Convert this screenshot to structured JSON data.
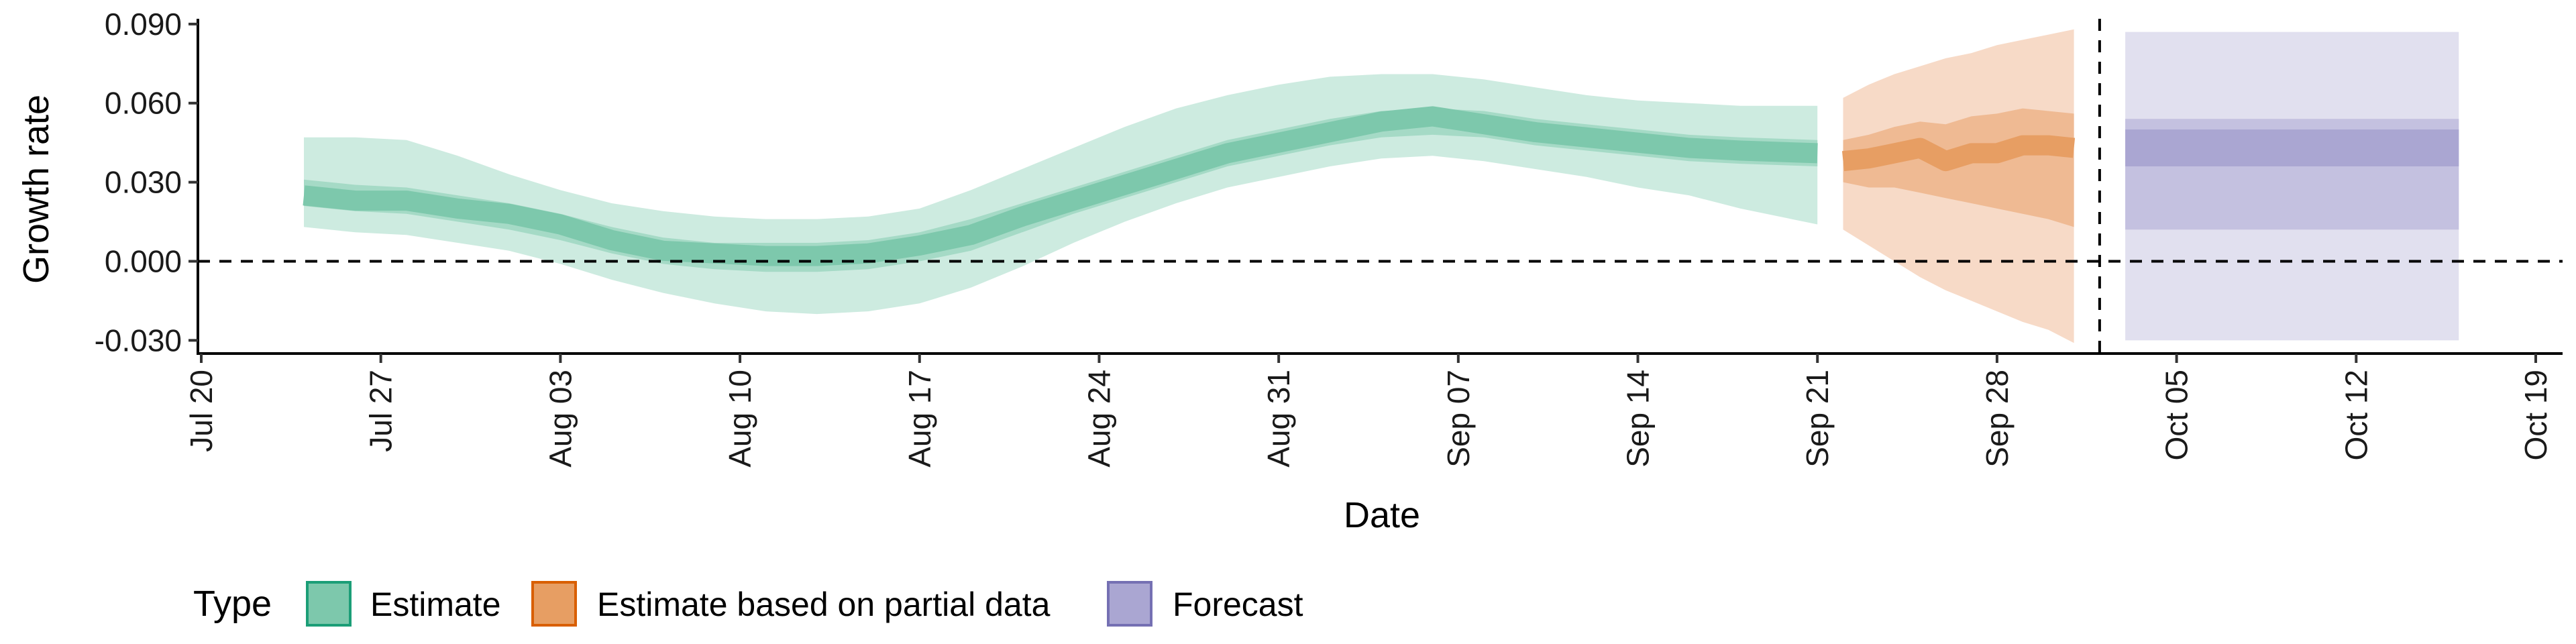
{
  "chart_data": {
    "type": "area",
    "xlabel": "Date",
    "ylabel": "Growth rate",
    "x_ticks": [
      "Jul 20",
      "Jul 27",
      "Aug 03",
      "Aug 10",
      "Aug 17",
      "Aug 24",
      "Aug 31",
      "Sep 07",
      "Sep 14",
      "Sep 21",
      "Sep 28",
      "Oct 05",
      "Oct 12",
      "Oct 19"
    ],
    "y_ticks": [
      "-0.030",
      "0.000",
      "0.030",
      "0.060",
      "0.090"
    ],
    "xlim": [
      "2020-07-20",
      "2020-10-19"
    ],
    "ylim": [
      -0.035,
      0.092
    ],
    "reference_lines": {
      "horizontal_y": 0.0,
      "vertical_date": "2020-10-02"
    },
    "legend": {
      "title": "Type",
      "position": "bottom-left",
      "entries": [
        "Estimate",
        "Estimate based on partial data",
        "Forecast"
      ]
    },
    "colors": {
      "estimate": "#1b9e77",
      "estimate_fill_light": "#cdebe0",
      "estimate_fill_mid": "#a5dac6",
      "estimate_fill_dark": "#7dc8ac",
      "partial": "#d95f02",
      "partial_fill_light": "#f7dac7",
      "partial_fill_mid": "#efba93",
      "partial_fill_dark": "#e79e63",
      "forecast": "#7570b3",
      "forecast_fill_light": "#e1e0ef",
      "forecast_fill_mid": "#c4c1e0",
      "forecast_fill_dark": "#aaa6d2"
    },
    "series": [
      {
        "name": "Estimate",
        "x": [
          "2020-07-24",
          "2020-07-26",
          "2020-07-28",
          "2020-07-30",
          "2020-08-01",
          "2020-08-03",
          "2020-08-05",
          "2020-08-07",
          "2020-08-09",
          "2020-08-11",
          "2020-08-13",
          "2020-08-15",
          "2020-08-17",
          "2020-08-19",
          "2020-08-21",
          "2020-08-23",
          "2020-08-25",
          "2020-08-27",
          "2020-08-29",
          "2020-08-31",
          "2020-09-02",
          "2020-09-04",
          "2020-09-06",
          "2020-09-08",
          "2020-09-10",
          "2020-09-12",
          "2020-09-14",
          "2020-09-16",
          "2020-09-18",
          "2020-09-21"
        ],
        "median": [
          0.025,
          0.023,
          0.023,
          0.02,
          0.018,
          0.014,
          0.008,
          0.004,
          0.003,
          0.002,
          0.002,
          0.003,
          0.006,
          0.01,
          0.017,
          0.023,
          0.029,
          0.035,
          0.041,
          0.045,
          0.049,
          0.053,
          0.055,
          0.052,
          0.049,
          0.047,
          0.045,
          0.043,
          0.042,
          0.041
        ],
        "lower90": [
          0.013,
          0.011,
          0.01,
          0.007,
          0.004,
          -0.001,
          -0.007,
          -0.012,
          -0.016,
          -0.019,
          -0.02,
          -0.019,
          -0.016,
          -0.01,
          -0.002,
          0.007,
          0.015,
          0.022,
          0.028,
          0.032,
          0.036,
          0.039,
          0.04,
          0.038,
          0.035,
          0.032,
          0.028,
          0.025,
          0.02,
          0.014
        ],
        "upper90": [
          0.047,
          0.047,
          0.046,
          0.04,
          0.033,
          0.027,
          0.022,
          0.019,
          0.017,
          0.016,
          0.016,
          0.017,
          0.02,
          0.027,
          0.035,
          0.043,
          0.051,
          0.058,
          0.063,
          0.067,
          0.07,
          0.071,
          0.071,
          0.069,
          0.066,
          0.063,
          0.061,
          0.06,
          0.059,
          0.059
        ],
        "lower50": [
          0.021,
          0.019,
          0.018,
          0.015,
          0.012,
          0.008,
          0.003,
          -0.001,
          -0.003,
          -0.004,
          -0.004,
          -0.003,
          0.0,
          0.004,
          0.011,
          0.018,
          0.024,
          0.03,
          0.036,
          0.04,
          0.044,
          0.047,
          0.048,
          0.047,
          0.044,
          0.042,
          0.04,
          0.038,
          0.037,
          0.036
        ],
        "upper50": [
          0.031,
          0.029,
          0.028,
          0.025,
          0.022,
          0.018,
          0.013,
          0.009,
          0.007,
          0.007,
          0.007,
          0.008,
          0.011,
          0.016,
          0.022,
          0.028,
          0.034,
          0.04,
          0.046,
          0.05,
          0.054,
          0.057,
          0.058,
          0.057,
          0.054,
          0.052,
          0.05,
          0.048,
          0.047,
          0.046
        ]
      },
      {
        "name": "Estimate based on partial data",
        "x": [
          "2020-09-22",
          "2020-09-23",
          "2020-09-24",
          "2020-09-25",
          "2020-09-26",
          "2020-09-27",
          "2020-09-28",
          "2020-09-29",
          "2020-09-30",
          "2020-10-01"
        ],
        "median": [
          0.038,
          0.039,
          0.041,
          0.043,
          0.038,
          0.041,
          0.041,
          0.044,
          0.044,
          0.043
        ],
        "lower90": [
          0.012,
          0.006,
          0.0,
          -0.006,
          -0.011,
          -0.015,
          -0.019,
          -0.023,
          -0.026,
          -0.031
        ],
        "upper90": [
          0.062,
          0.067,
          0.071,
          0.074,
          0.077,
          0.079,
          0.082,
          0.084,
          0.086,
          0.088
        ],
        "lower50": [
          0.03,
          0.028,
          0.028,
          0.026,
          0.024,
          0.022,
          0.02,
          0.018,
          0.016,
          0.013
        ],
        "upper50": [
          0.046,
          0.048,
          0.051,
          0.053,
          0.052,
          0.055,
          0.056,
          0.058,
          0.057,
          0.056
        ]
      },
      {
        "name": "Forecast",
        "x": [
          "2020-10-03",
          "2020-10-16"
        ],
        "median": [
          0.042,
          0.042
        ],
        "lower90": [
          -0.03,
          -0.03
        ],
        "upper90": [
          0.087,
          0.087
        ],
        "lower50": [
          0.012,
          0.012
        ],
        "upper50": [
          0.054,
          0.054
        ],
        "lower20": [
          0.036,
          0.036
        ],
        "upper20": [
          0.05,
          0.05
        ]
      }
    ]
  }
}
